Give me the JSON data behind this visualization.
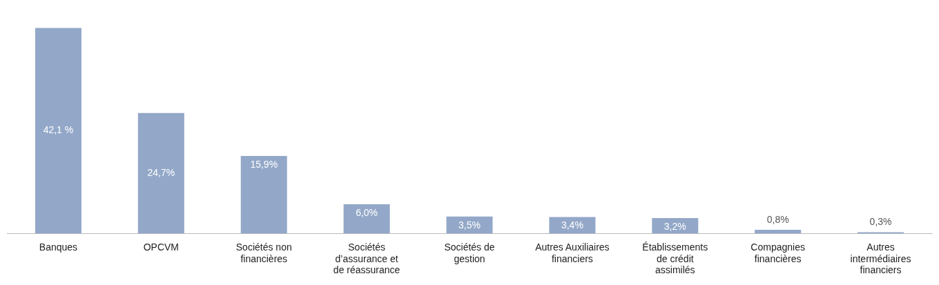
{
  "chart_data": {
    "type": "bar",
    "categories": [
      "Banques",
      "OPCVM",
      "Sociétés non financières",
      "Sociétés d’assurance et de réassurance",
      "Sociétés de gestion",
      "Autres Auxiliaires financiers",
      "Établissements de crédit assimilés",
      "Compagnies financières",
      "Autres intermédiaires financiers"
    ],
    "values": [
      42.1,
      24.7,
      15.9,
      6.0,
      3.5,
      3.4,
      3.2,
      0.8,
      0.3
    ],
    "value_labels": [
      "42,1 %",
      "24,7%",
      "15,9%",
      "6,0%",
      "3,5%",
      "3,4%",
      "3,2%",
      "0,8%",
      "0,3%"
    ],
    "color": "#93a8c8"
  }
}
